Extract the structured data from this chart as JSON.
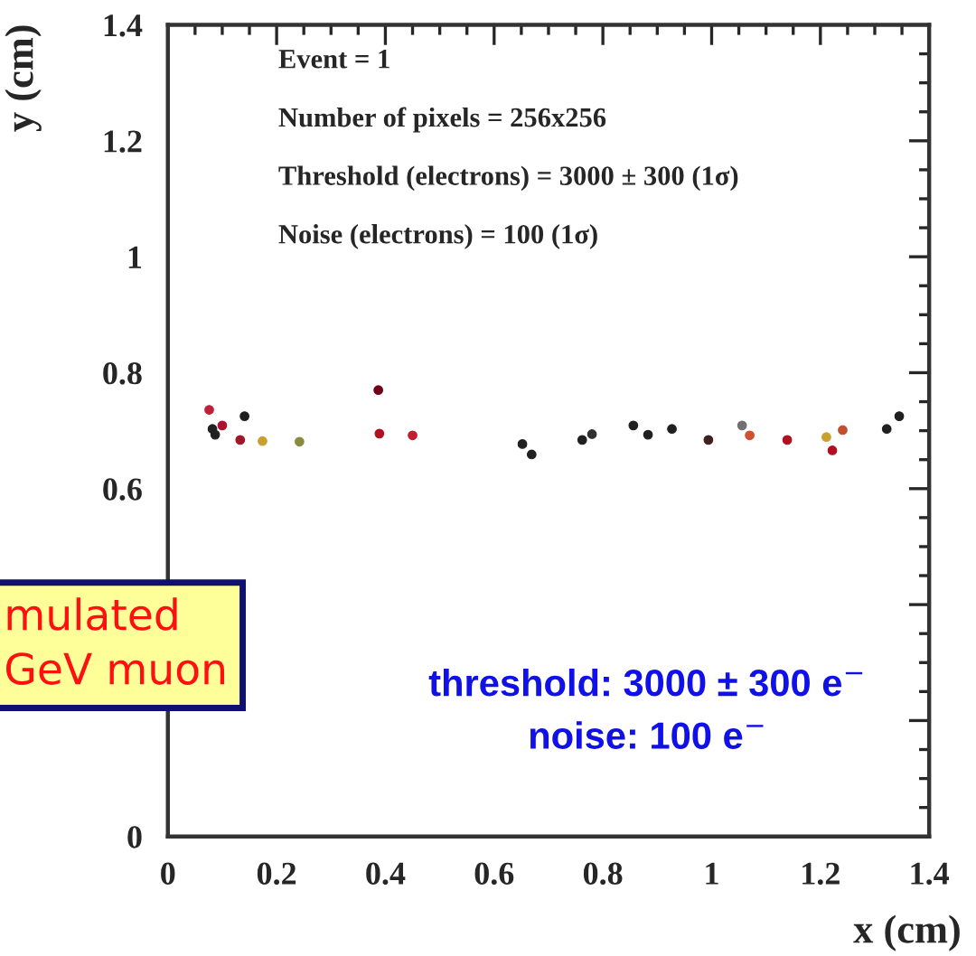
{
  "chart_data": {
    "type": "scatter",
    "xlabel": "x (cm)",
    "ylabel": "y (cm)",
    "x": [
      0.076,
      0.082,
      0.087,
      0.1,
      0.133,
      0.141,
      0.174,
      0.242,
      0.387,
      0.389,
      0.45,
      0.652,
      0.669,
      0.762,
      0.78,
      0.856,
      0.883,
      0.927,
      0.994,
      1.056,
      1.07,
      1.139,
      1.211,
      1.222,
      1.241,
      1.322,
      1.345
    ],
    "values": [
      0.736,
      0.703,
      0.693,
      0.709,
      0.684,
      0.725,
      0.682,
      0.681,
      0.77,
      0.695,
      0.692,
      0.677,
      0.659,
      0.684,
      0.694,
      0.709,
      0.693,
      0.703,
      0.684,
      0.709,
      0.692,
      0.684,
      0.689,
      0.666,
      0.701,
      0.703,
      0.725
    ],
    "colors": [
      "#c0203a",
      "#202020",
      "#202020",
      "#b01030",
      "#a01828",
      "#202020",
      "#c8a030",
      "#8a8a40",
      "#700018",
      "#b01020",
      "#c02030",
      "#202020",
      "#202020",
      "#202020",
      "#303030",
      "#202020",
      "#202020",
      "#202020",
      "#402020",
      "#707070",
      "#d05030",
      "#b01020",
      "#c8a030",
      "#b01020",
      "#c05030",
      "#202020",
      "#202020"
    ],
    "marker": "circle",
    "xlim": [
      0,
      1.4
    ],
    "xticks": [
      0,
      0.2,
      0.4,
      0.6,
      0.8,
      1,
      1.2,
      1.4
    ],
    "ylim": [
      0,
      1.4
    ],
    "yticks": [
      0,
      {
        "value": 0.2,
        "label": null
      },
      {
        "value": 0.4,
        "label": null
      },
      0.6,
      0.8,
      1,
      1.2,
      1.4
    ],
    "annotations": [
      "Event = 1",
      "Number of pixels = 256x256",
      "Threshold (electrons) = 3000 ± 300 (1σ)",
      "Noise (electrons) = 100 (1σ)",
      "threshold: 3000 ± 300 e$^{−}$",
      "noise: 100 e$^{−}$",
      "mulated\nGeV muon"
    ]
  }
}
